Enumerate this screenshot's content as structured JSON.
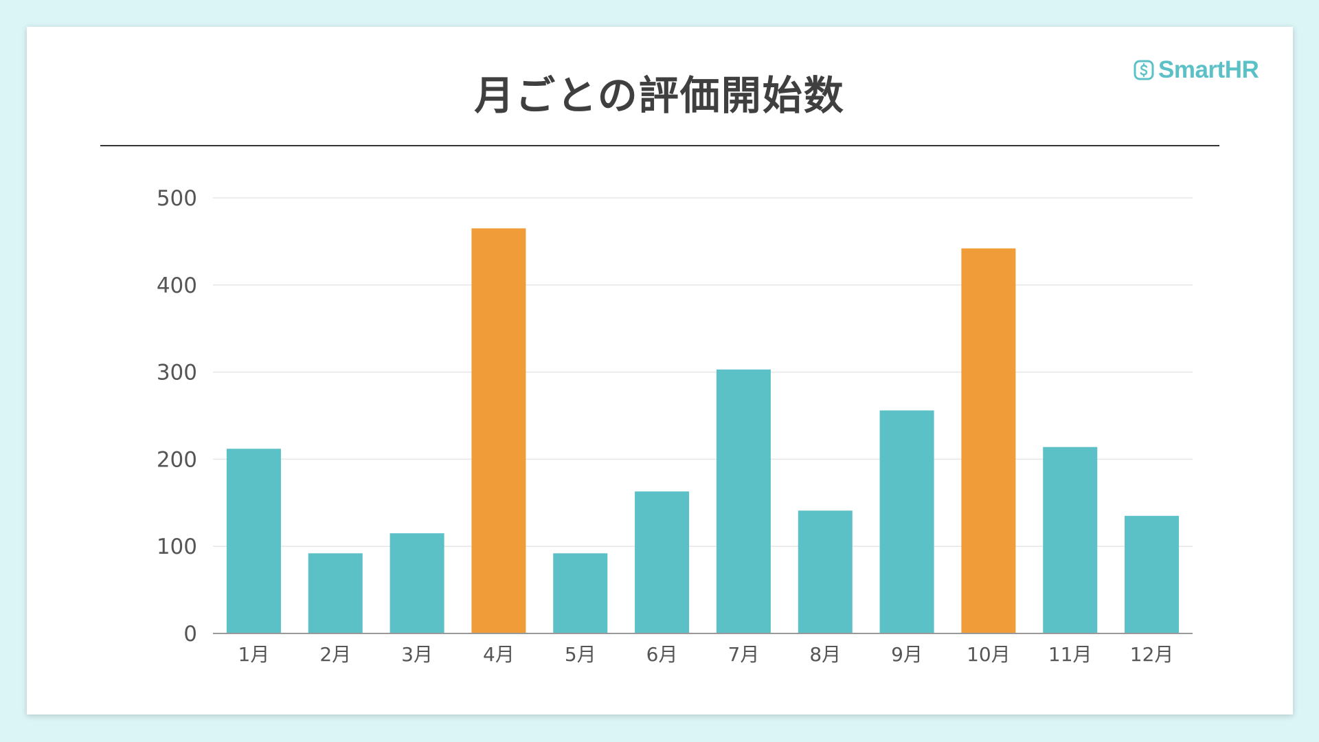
{
  "header": {
    "title": "月ごとの評価開始数",
    "logo_text": "SmartHR",
    "logo_icon": "smarthr-logo-icon"
  },
  "colors": {
    "background": "#dbf4f5",
    "bar_default": "#5bc1c7",
    "bar_highlight": "#f09c38",
    "grid": "#e6e6e6",
    "axis": "#999999"
  },
  "chart_data": {
    "type": "bar",
    "title": "月ごとの評価開始数",
    "xlabel": "",
    "ylabel": "",
    "categories": [
      "1月",
      "2月",
      "3月",
      "4月",
      "5月",
      "6月",
      "7月",
      "8月",
      "9月",
      "10月",
      "11月",
      "12月"
    ],
    "values": [
      212,
      92,
      115,
      465,
      92,
      163,
      303,
      141,
      256,
      442,
      214,
      135
    ],
    "highlighted": [
      "4月",
      "10月"
    ],
    "ylim": [
      0,
      500
    ],
    "yticks": [
      0,
      100,
      200,
      300,
      400,
      500
    ],
    "grid": true,
    "legend": "none"
  }
}
